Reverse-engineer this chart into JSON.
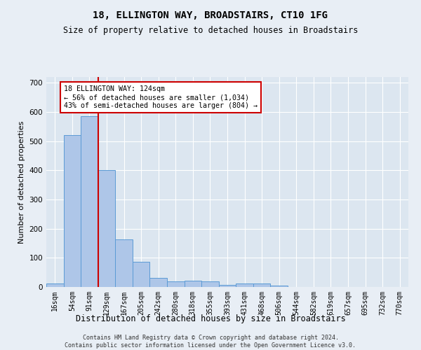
{
  "title": "18, ELLINGTON WAY, BROADSTAIRS, CT10 1FG",
  "subtitle": "Size of property relative to detached houses in Broadstairs",
  "xlabel": "Distribution of detached houses by size in Broadstairs",
  "ylabel": "Number of detached properties",
  "bar_labels": [
    "16sqm",
    "54sqm",
    "91sqm",
    "129sqm",
    "167sqm",
    "205sqm",
    "242sqm",
    "280sqm",
    "318sqm",
    "355sqm",
    "393sqm",
    "431sqm",
    "468sqm",
    "506sqm",
    "544sqm",
    "582sqm",
    "619sqm",
    "657sqm",
    "695sqm",
    "732sqm",
    "770sqm"
  ],
  "bar_values": [
    13,
    520,
    585,
    400,
    163,
    87,
    32,
    20,
    22,
    20,
    8,
    12,
    12,
    4,
    0,
    0,
    0,
    0,
    0,
    0,
    0
  ],
  "bar_color": "#aec6e8",
  "bar_edge_color": "#5b9bd5",
  "vline_x_index": 3,
  "vline_color": "#cc0000",
  "annotation_text": "18 ELLINGTON WAY: 124sqm\n← 56% of detached houses are smaller (1,034)\n43% of semi-detached houses are larger (804) →",
  "annotation_box_color": "#ffffff",
  "annotation_box_edge_color": "#cc0000",
  "ylim": [
    0,
    720
  ],
  "yticks": [
    0,
    100,
    200,
    300,
    400,
    500,
    600,
    700
  ],
  "bg_color": "#e8eef5",
  "plot_bg_color": "#dce6f0",
  "footer_line1": "Contains HM Land Registry data © Crown copyright and database right 2024.",
  "footer_line2": "Contains public sector information licensed under the Open Government Licence v3.0."
}
